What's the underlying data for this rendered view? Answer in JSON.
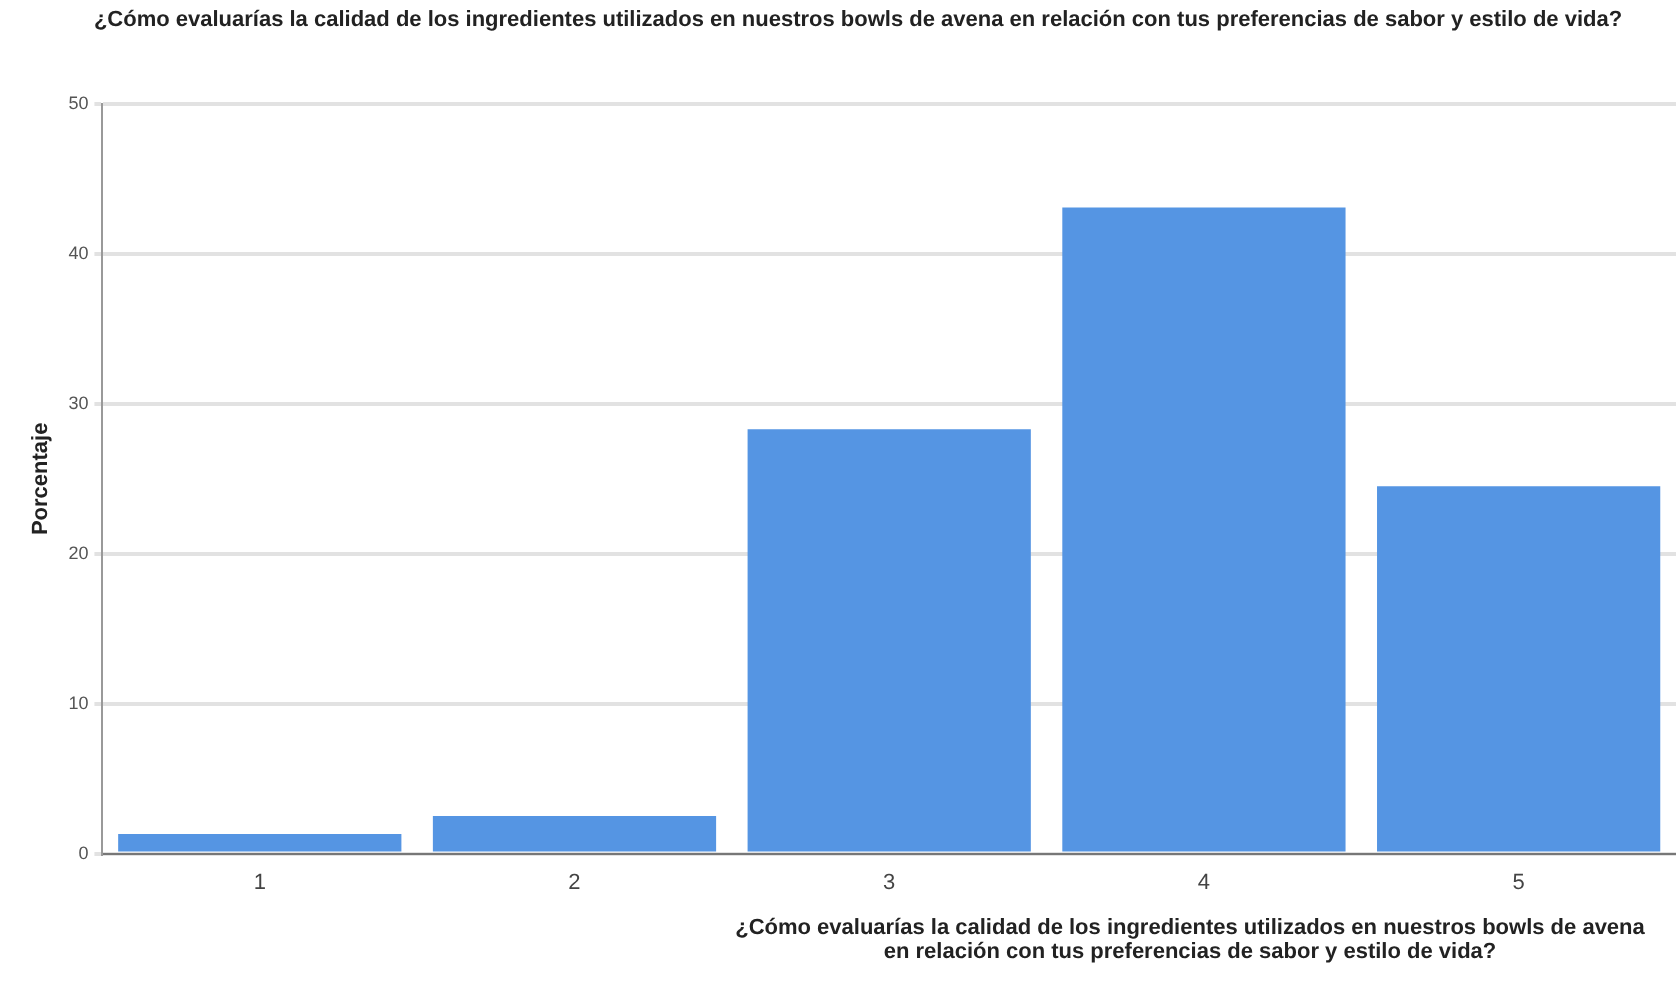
{
  "chart_data": {
    "type": "bar",
    "title": "¿Cómo evaluarías la calidad de los ingredientes utilizados en nuestros bowls de avena en relación con tus preferencias de sabor y estilo de vida?",
    "xlabel": "¿Cómo evaluarías la calidad de los ingredientes utilizados en nuestros bowls de avena en relación con tus preferencias de sabor y estilo de vida?",
    "ylabel": "Porcentaje",
    "categories": [
      "1",
      "2",
      "3",
      "4",
      "5"
    ],
    "values": [
      1.3,
      2.5,
      28.3,
      43.1,
      24.5
    ],
    "color": "#5595e3",
    "ylim": [
      0,
      50
    ],
    "yticks": [
      0,
      10,
      20,
      30,
      40,
      50
    ],
    "grid": "y"
  }
}
